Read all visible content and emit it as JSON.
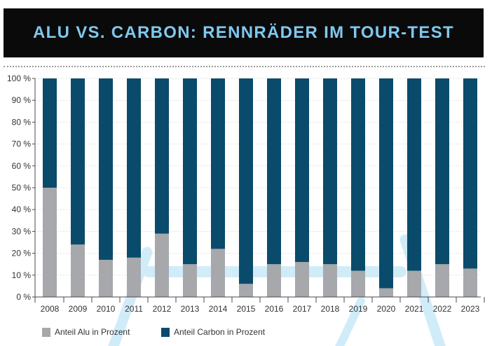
{
  "chart_data": {
    "type": "bar",
    "stacked": true,
    "title": "ALU VS. CARBON: RENNRÄDER IM TOUR-TEST",
    "xlabel": "",
    "ylabel": "",
    "categories": [
      "2008",
      "2009",
      "2010",
      "2011",
      "2012",
      "2013",
      "2014",
      "2015",
      "2016",
      "2017",
      "2018",
      "2019",
      "2020",
      "2021",
      "2022",
      "2023"
    ],
    "series": [
      {
        "name": "Anteil Alu in Prozent",
        "color": "#a6a8ab",
        "values": [
          50,
          24,
          17,
          18,
          29,
          15,
          22,
          6,
          15,
          16,
          15,
          12,
          4,
          12,
          15,
          13
        ]
      },
      {
        "name": "Anteil Carbon in Prozent",
        "color": "#0a4b6b",
        "values": [
          50,
          76,
          83,
          82,
          71,
          85,
          78,
          94,
          85,
          84,
          85,
          88,
          96,
          88,
          85,
          87
        ]
      }
    ],
    "ylim": [
      0,
      100
    ],
    "yticks": [
      0,
      10,
      20,
      30,
      40,
      50,
      60,
      70,
      80,
      90,
      100
    ],
    "ytick_labels": [
      "0 %",
      "10 %",
      "20 %",
      "30 %",
      "40 %",
      "50 %",
      "60 %",
      "70 %",
      "80 %",
      "90 %",
      "100 %"
    ],
    "grid": true,
    "legend": "bottom-left"
  },
  "style": {
    "header_bg": "#0a0a0a",
    "title_color": "#7fc8ee",
    "watermark_color": "#cdebf9"
  }
}
